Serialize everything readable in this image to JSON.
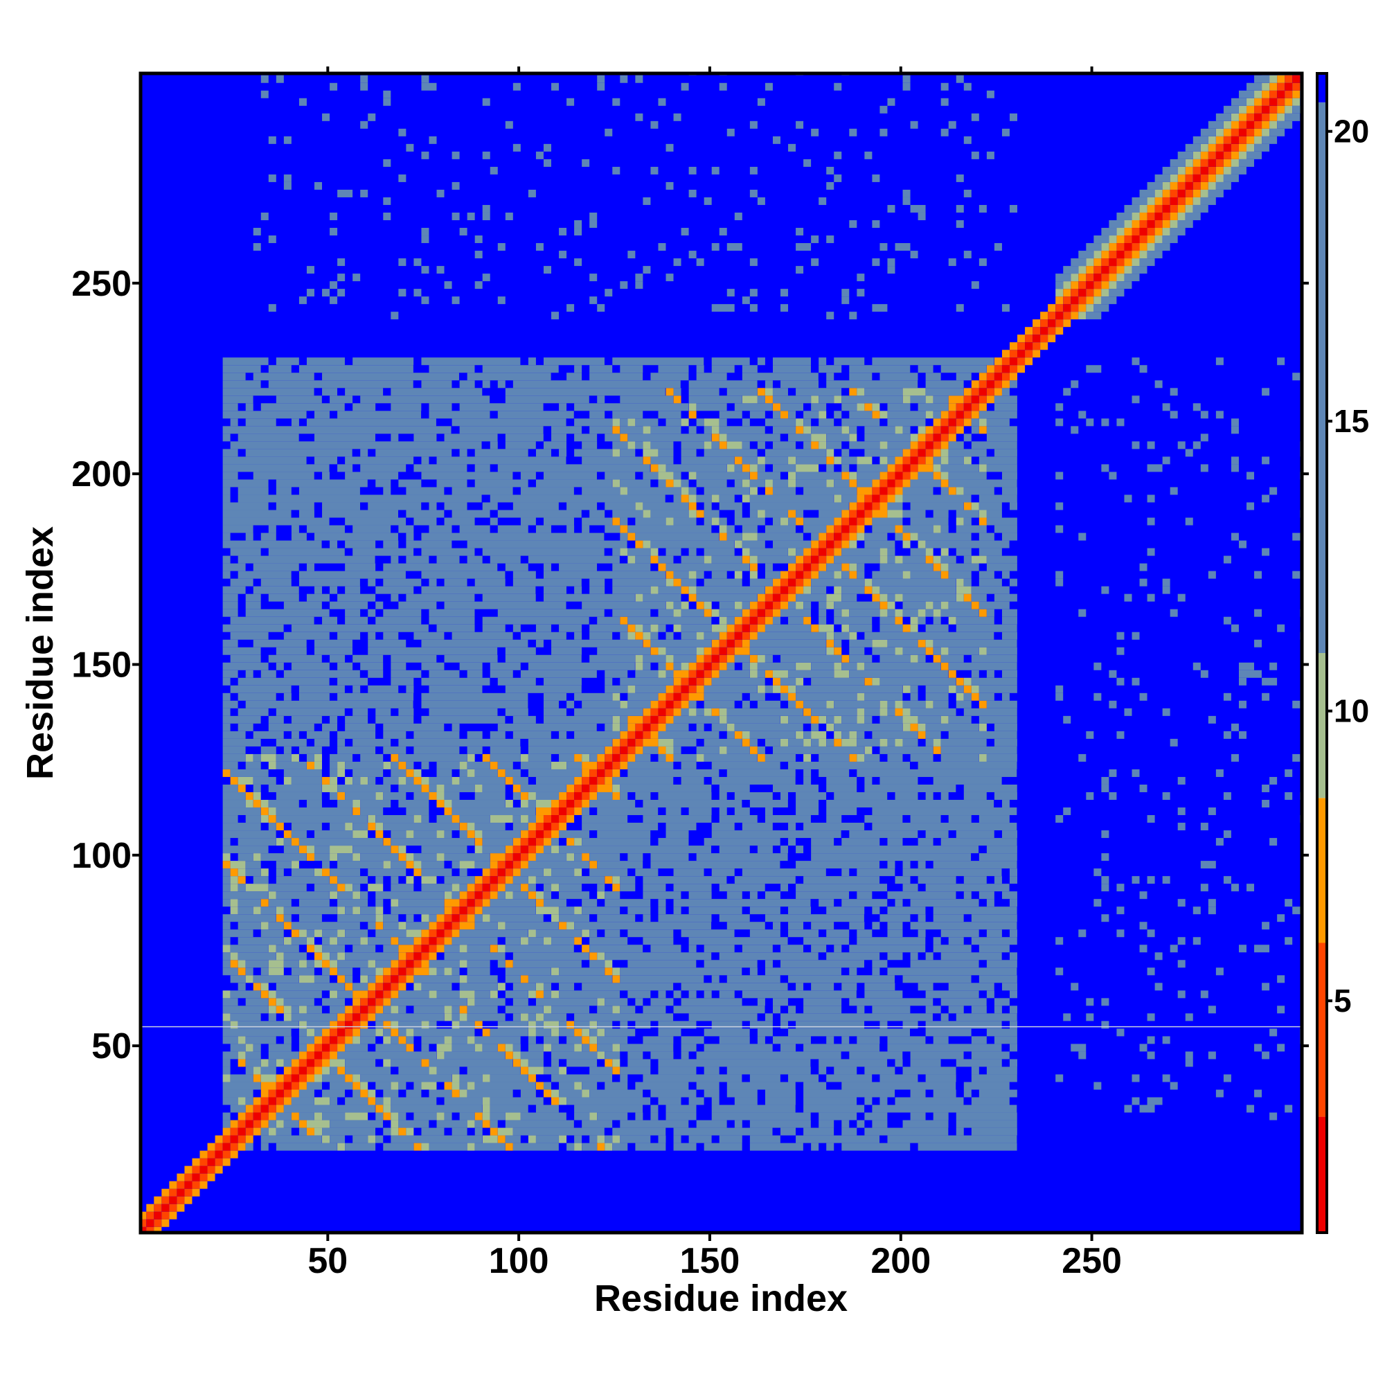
{
  "chart_data": {
    "type": "heatmap",
    "title": "",
    "xlabel": "Residue index",
    "ylabel": "Residue index",
    "xlim": [
      1,
      305
    ],
    "ylim": [
      1,
      305
    ],
    "x_ticks": [
      50,
      100,
      150,
      200,
      250
    ],
    "y_ticks": [
      50,
      100,
      150,
      200,
      250
    ],
    "colorbar": {
      "range": [
        1,
        21
      ],
      "ticks": [
        5,
        10,
        15,
        20
      ],
      "colors": [
        {
          "from": 1,
          "to": 3,
          "color": "#ee0000"
        },
        {
          "from": 3,
          "to": 6,
          "color": "#ff4500"
        },
        {
          "from": 6,
          "to": 8.5,
          "color": "#ff9a00"
        },
        {
          "from": 8.5,
          "to": 11,
          "color": "#a6bf8f"
        },
        {
          "from": 11,
          "to": 20.5,
          "color": "#5e86b6"
        },
        {
          "from": 20.5,
          "to": 21,
          "color": "#0000ff"
        }
      ]
    },
    "background_color": "#0000ff",
    "regions": [
      {
        "kind": "diagonal",
        "from": 1,
        "to": 305,
        "value": 2
      },
      {
        "kind": "domain-contact",
        "x": [
          22,
          125
        ],
        "y": [
          22,
          125
        ],
        "value": 14
      },
      {
        "kind": "domain-contact",
        "x": [
          125,
          222
        ],
        "y": [
          125,
          222
        ],
        "value": 14
      },
      {
        "kind": "inter-domain",
        "x": [
          22,
          230
        ],
        "y": [
          22,
          230
        ],
        "value": 16
      },
      {
        "kind": "c-terminal-helix",
        "from": 240,
        "to": 305,
        "value": 12
      }
    ]
  }
}
